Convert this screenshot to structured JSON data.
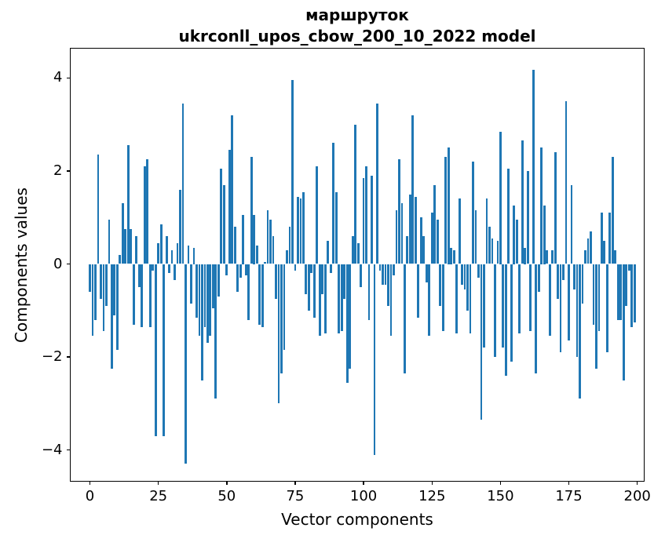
{
  "figure": {
    "title_line1": "маршруток",
    "title_line2": "ukrconll_upos_cbow_200_10_2022 model",
    "xlabel": "Vector components",
    "ylabel": "Components values"
  },
  "chart_data": {
    "type": "bar",
    "title": "маршруток — ukrconll_upos_cbow_200_10_2022 model",
    "xlabel": "Vector components",
    "ylabel": "Components values",
    "bar_color": "#1f77b4",
    "grid": false,
    "legend": false,
    "x_range": [
      0,
      199
    ],
    "xlim": [
      -8,
      203
    ],
    "ylim": [
      -4.7,
      4.6
    ],
    "x_ticks": [
      0,
      25,
      50,
      75,
      100,
      125,
      150,
      175,
      200
    ],
    "x_tick_labels": [
      "0",
      "25",
      "50",
      "75",
      "100",
      "125",
      "150",
      "175",
      "200"
    ],
    "y_ticks": [
      -4,
      -2,
      0,
      2,
      4
    ],
    "y_tick_labels": [
      "−4",
      "−2",
      "0",
      "2",
      "4"
    ],
    "values": [
      -0.6,
      -1.55,
      -1.2,
      2.35,
      -0.75,
      -1.45,
      -0.9,
      0.95,
      -2.25,
      -1.1,
      -1.85,
      0.2,
      1.3,
      0.75,
      2.55,
      0.75,
      -1.3,
      0.6,
      -0.5,
      -1.35,
      2.1,
      2.25,
      -1.35,
      -0.15,
      -3.7,
      0.45,
      0.85,
      -3.7,
      0.6,
      -0.2,
      0.3,
      -0.35,
      0.45,
      1.6,
      3.45,
      -4.3,
      0.4,
      -0.85,
      0.35,
      -1.15,
      -1.55,
      -2.5,
      -1.35,
      -1.7,
      -1.55,
      -0.95,
      -2.9,
      -0.7,
      2.05,
      1.7,
      -0.25,
      2.45,
      3.2,
      0.8,
      -0.6,
      -0.3,
      1.05,
      -0.25,
      -1.2,
      2.3,
      1.05,
      0.4,
      -1.3,
      -1.35,
      0.05,
      1.15,
      0.95,
      0.6,
      -0.75,
      -3.0,
      -2.35,
      -1.85,
      0.3,
      0.8,
      3.95,
      -0.15,
      1.45,
      1.4,
      1.55,
      -0.65,
      -1.0,
      -0.2,
      -1.15,
      2.1,
      -1.55,
      -0.65,
      -1.5,
      0.5,
      -0.2,
      2.6,
      1.55,
      -1.5,
      -1.45,
      -0.75,
      -2.55,
      -2.25,
      0.6,
      3.0,
      0.45,
      -0.5,
      1.85,
      2.1,
      -1.2,
      1.9,
      -4.1,
      3.45,
      -0.15,
      -0.45,
      -0.45,
      -0.9,
      -1.55,
      -0.25,
      1.15,
      2.25,
      1.3,
      -2.35,
      0.6,
      1.5,
      3.2,
      1.45,
      -1.15,
      1.0,
      0.6,
      -0.4,
      -1.55,
      1.1,
      1.7,
      0.95,
      -0.9,
      -1.45,
      2.3,
      2.5,
      0.35,
      0.3,
      -1.5,
      1.4,
      -0.45,
      -0.55,
      -1.0,
      -1.5,
      2.2,
      1.15,
      -0.3,
      -3.35,
      -1.8,
      1.4,
      0.8,
      0.55,
      -2.0,
      0.5,
      2.85,
      -1.8,
      -2.4,
      2.05,
      -2.1,
      1.25,
      0.95,
      -1.5,
      2.65,
      0.35,
      2.0,
      -1.45,
      4.17,
      -2.35,
      -0.6,
      2.5,
      1.25,
      0.3,
      -1.55,
      0.3,
      2.4,
      -0.75,
      -1.9,
      -0.35,
      3.5,
      -1.65,
      1.7,
      -0.55,
      -2.0,
      -2.9,
      -0.85,
      0.3,
      0.55,
      0.7,
      -1.3,
      -2.25,
      -1.45,
      1.1,
      0.5,
      -1.9,
      1.1,
      2.3,
      0.3,
      -1.2,
      -1.2,
      -2.5,
      -0.9,
      -0.15,
      -1.35,
      -1.25
    ]
  }
}
